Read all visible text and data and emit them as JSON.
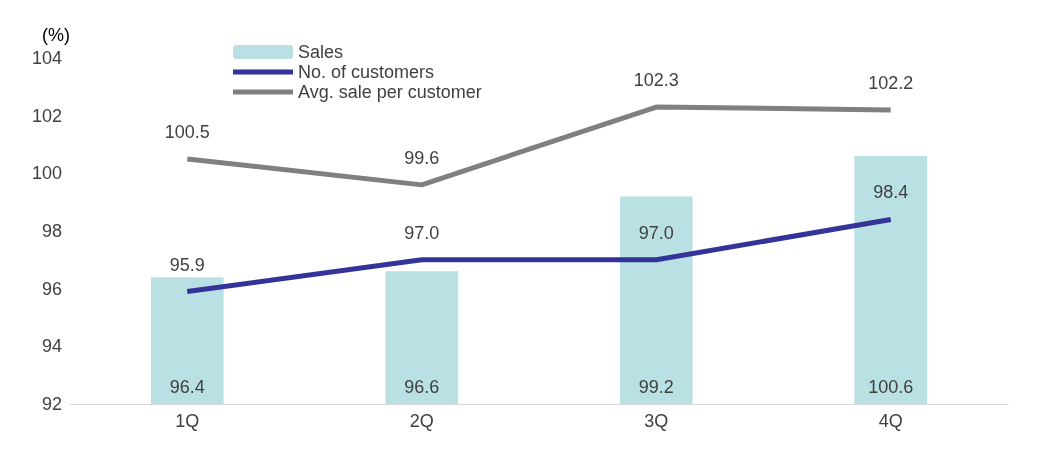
{
  "chart_data": {
    "type": "bar",
    "ylabel": "(%)",
    "categories": [
      "1Q",
      "2Q",
      "3Q",
      "4Q"
    ],
    "series": [
      {
        "name": "Sales",
        "type": "bar",
        "color": "#b9e0e2",
        "values": [
          96.4,
          96.6,
          99.2,
          100.6
        ],
        "value_labels": [
          "96.4",
          "96.6",
          "99.2",
          "100.6"
        ]
      },
      {
        "name": "No. of customers",
        "type": "line",
        "color": "#333399",
        "values": [
          95.9,
          97.0,
          97.0,
          98.4
        ],
        "value_labels": [
          "95.9",
          "97.0",
          "97.0",
          "98.4"
        ]
      },
      {
        "name": "Avg. sale per customer",
        "type": "line",
        "color": "#808080",
        "values": [
          100.5,
          99.6,
          102.3,
          102.2
        ],
        "value_labels": [
          "100.5",
          "99.6",
          "102.3",
          "102.2"
        ]
      }
    ],
    "ylim": [
      92,
      104
    ],
    "yticks": [
      92,
      94,
      96,
      98,
      100,
      102,
      104
    ],
    "grid": false,
    "legend": "top left",
    "marker": "none"
  }
}
